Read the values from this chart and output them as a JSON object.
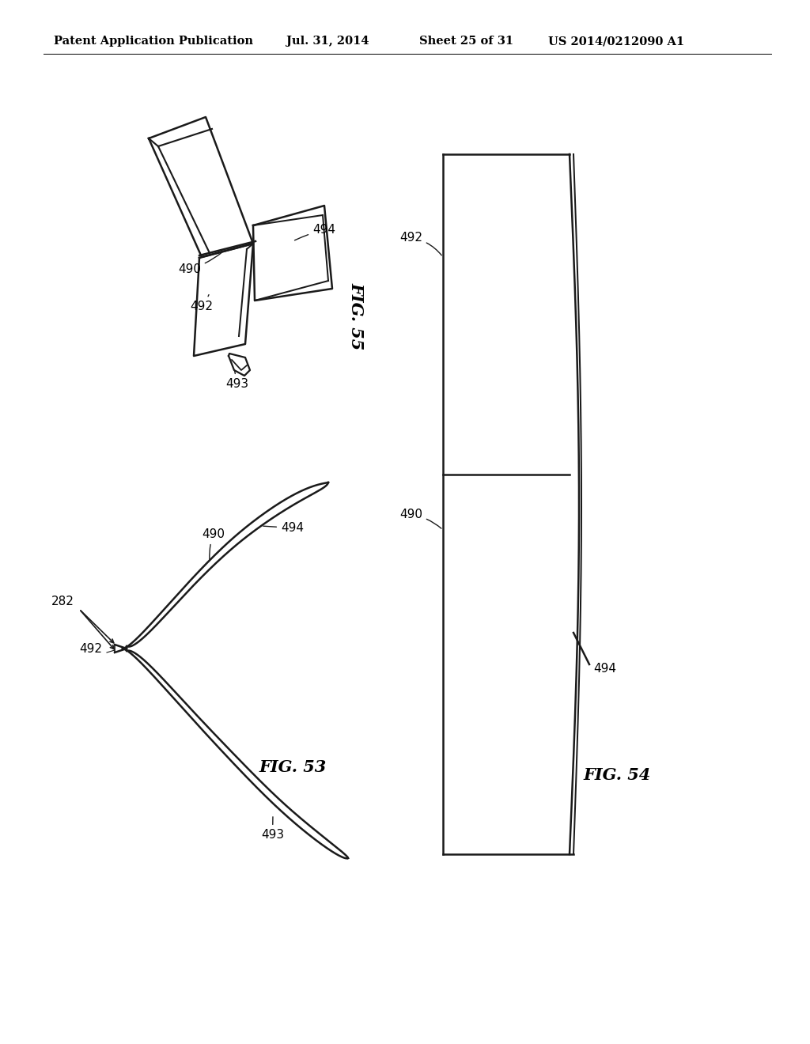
{
  "background_color": "#ffffff",
  "header_text": "Patent Application Publication",
  "header_date": "Jul. 31, 2014",
  "header_sheet": "Sheet 25 of 31",
  "header_patent": "US 2014/0212090 A1",
  "fig53_label": "FIG. 53",
  "fig54_label": "FIG. 54",
  "fig55_label": "FIG. 55",
  "line_color": "#1a1a1a",
  "line_width": 1.8,
  "annotation_fontsize": 11,
  "header_fontsize": 11,
  "fig_label_fontsize": 15
}
